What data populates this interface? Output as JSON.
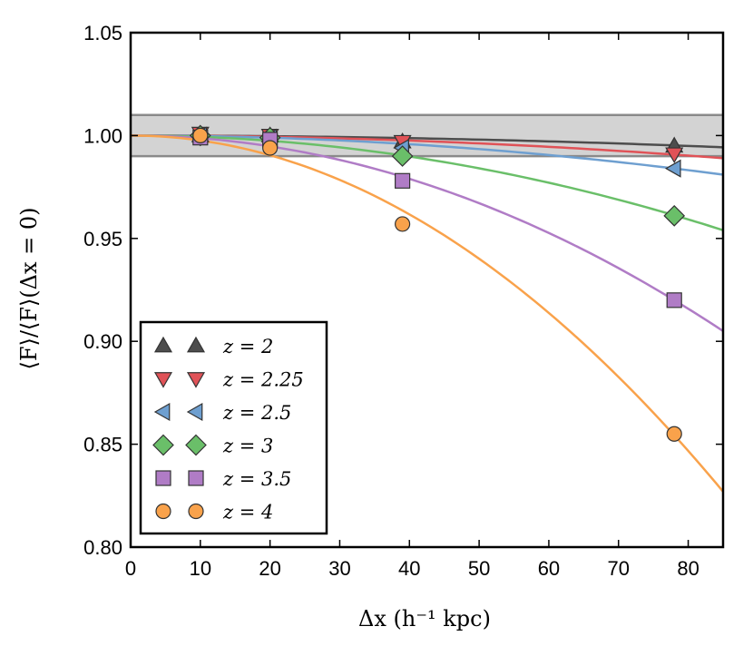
{
  "chart_data": {
    "type": "scatter",
    "xlabel": "Δx   (h⁻¹ kpc)",
    "ylabel": "⟨F⟩/⟨F⟩(Δx = 0)",
    "xlim": [
      0,
      85
    ],
    "ylim": [
      0.8,
      1.05
    ],
    "xticks": [
      "0",
      "10",
      "20",
      "30",
      "40",
      "50",
      "60",
      "70",
      "80"
    ],
    "yticks": [
      "0.80",
      "0.85",
      "0.90",
      "0.95",
      "1.00",
      "1.05"
    ],
    "band": {
      "ymin": 0.99,
      "ymax": 1.01,
      "color": "#d3d3d3"
    },
    "legend_position": "lower-left",
    "x": [
      10,
      20,
      39,
      78
    ],
    "series": [
      {
        "name": "z = 2",
        "marker": "triangle-up",
        "color": "#4d4d4d",
        "values": [
          1.0,
          1.0,
          0.997,
          0.995
        ],
        "curve_at_85": 0.9943
      },
      {
        "name": "z = 2.25",
        "marker": "triangle-down",
        "color": "#e05257",
        "values": [
          1.001,
          1.0,
          0.997,
          0.991
        ],
        "curve_at_85": 0.989
      },
      {
        "name": "z = 2.5",
        "marker": "triangle-left",
        "color": "#6e9fd0",
        "values": [
          1.0,
          0.999,
          0.994,
          0.984
        ],
        "curve_at_85": 0.981
      },
      {
        "name": "z = 3",
        "marker": "diamond",
        "color": "#6abf69",
        "values": [
          1.0,
          0.999,
          0.99,
          0.961
        ],
        "curve_at_85": 0.954
      },
      {
        "name": "z = 3.5",
        "marker": "square",
        "color": "#b07cc6",
        "values": [
          0.999,
          0.998,
          0.978,
          0.92
        ],
        "curve_at_85": 0.905
      },
      {
        "name": "z = 4",
        "marker": "circle",
        "color": "#f9a24b",
        "values": [
          1.0,
          0.994,
          0.957,
          0.855
        ],
        "curve_at_85": 0.827
      }
    ]
  }
}
